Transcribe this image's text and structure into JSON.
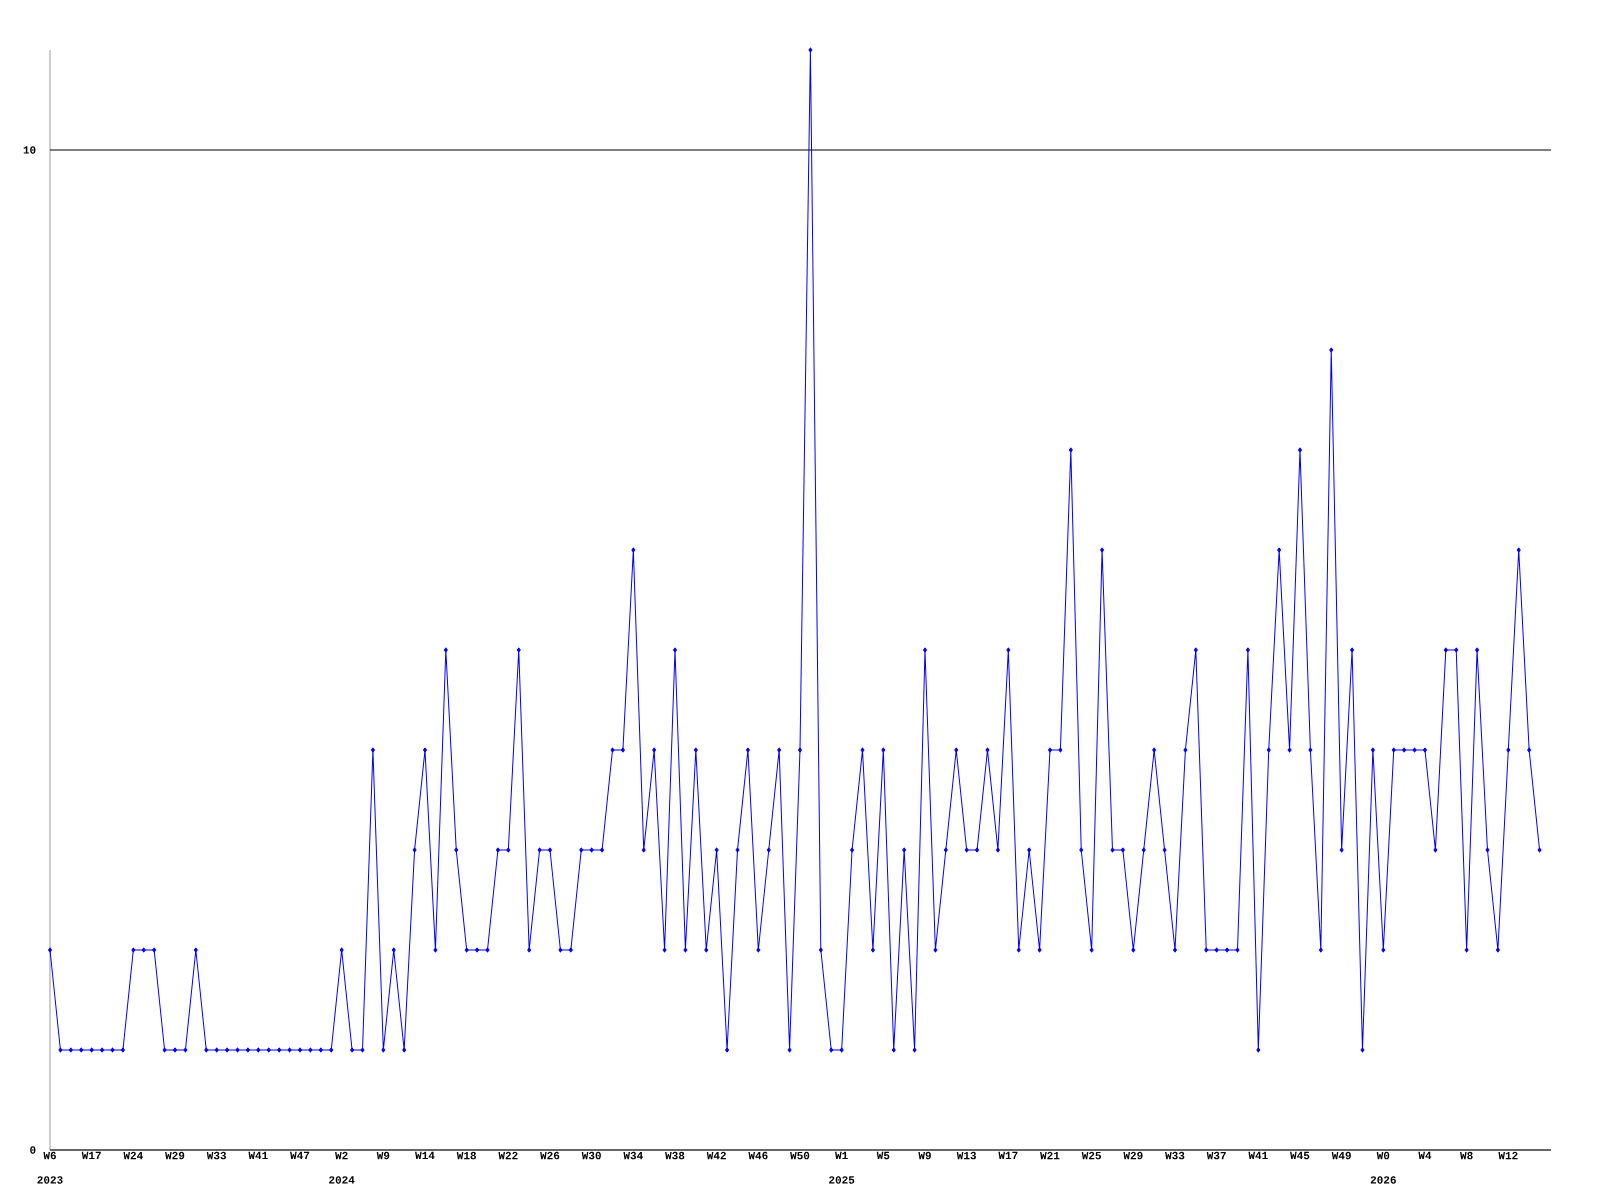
{
  "chart_data": {
    "type": "line",
    "categories": [
      "W6",
      null,
      null,
      null,
      "W17",
      null,
      null,
      null,
      "W24",
      null,
      null,
      null,
      "W29",
      null,
      null,
      null,
      "W33",
      null,
      null,
      null,
      "W41",
      null,
      null,
      null,
      "W47",
      null,
      null,
      null,
      "W2",
      null,
      null,
      null,
      "W9",
      null,
      null,
      null,
      "W14",
      null,
      null,
      null,
      "W18",
      null,
      null,
      null,
      "W22",
      null,
      null,
      null,
      "W26",
      null,
      null,
      null,
      "W30",
      null,
      null,
      null,
      "W34",
      null,
      null,
      null,
      "W38",
      null,
      null,
      null,
      "W42",
      null,
      null,
      null,
      "W46",
      null,
      null,
      null,
      "W50",
      null,
      null,
      null,
      "W1",
      null,
      null,
      null,
      "W5",
      null,
      null,
      null,
      "W9",
      null,
      null,
      null,
      "W13",
      null,
      null,
      null,
      "W17",
      null,
      null,
      null,
      "W21",
      null,
      null,
      null,
      "W25",
      null,
      null,
      null,
      "W29",
      null,
      null,
      null,
      "W33",
      null,
      null,
      null,
      "W37",
      null,
      null,
      null,
      "W41",
      null,
      null,
      null,
      "W45",
      null,
      null,
      null,
      "W49",
      null,
      null,
      null,
      "W0",
      null,
      null,
      null,
      "W4",
      null,
      null,
      null,
      "W8",
      null,
      null,
      null,
      "W12",
      null,
      null,
      null
    ],
    "values": [
      2,
      1,
      1,
      1,
      1,
      1,
      1,
      1,
      2,
      2,
      2,
      1,
      1,
      1,
      2,
      1,
      1,
      1,
      1,
      1,
      1,
      1,
      1,
      1,
      1,
      1,
      1,
      1,
      2,
      1,
      1,
      4,
      1,
      2,
      1,
      3,
      4,
      2,
      5,
      3,
      2,
      2,
      2,
      3,
      3,
      5,
      2,
      3,
      3,
      2,
      2,
      3,
      3,
      3,
      4,
      4,
      6,
      3,
      4,
      2,
      5,
      2,
      4,
      2,
      3,
      1,
      3,
      4,
      2,
      3,
      4,
      1,
      4,
      11,
      2,
      1,
      1,
      3,
      4,
      2,
      4,
      1,
      3,
      1,
      5,
      2,
      3,
      4,
      3,
      3,
      4,
      3,
      5,
      2,
      3,
      2,
      4,
      4,
      7,
      3,
      2,
      6,
      3,
      3,
      2,
      3,
      4,
      3,
      2,
      4,
      5,
      2,
      2,
      2,
      2,
      5,
      1,
      4,
      6,
      4,
      7,
      4,
      2,
      8,
      3,
      5,
      1,
      4,
      2,
      4,
      4,
      4,
      4,
      3,
      5,
      5,
      2,
      5,
      3,
      2,
      4,
      6,
      4,
      3
    ],
    "color": "#0000ff",
    "marker": "diamond",
    "ylim": [
      0,
      11
    ],
    "yticks": [
      0,
      10
    ],
    "grid": "y",
    "annotations": [
      "2023",
      "2024",
      "2025",
      "2026"
    ]
  }
}
